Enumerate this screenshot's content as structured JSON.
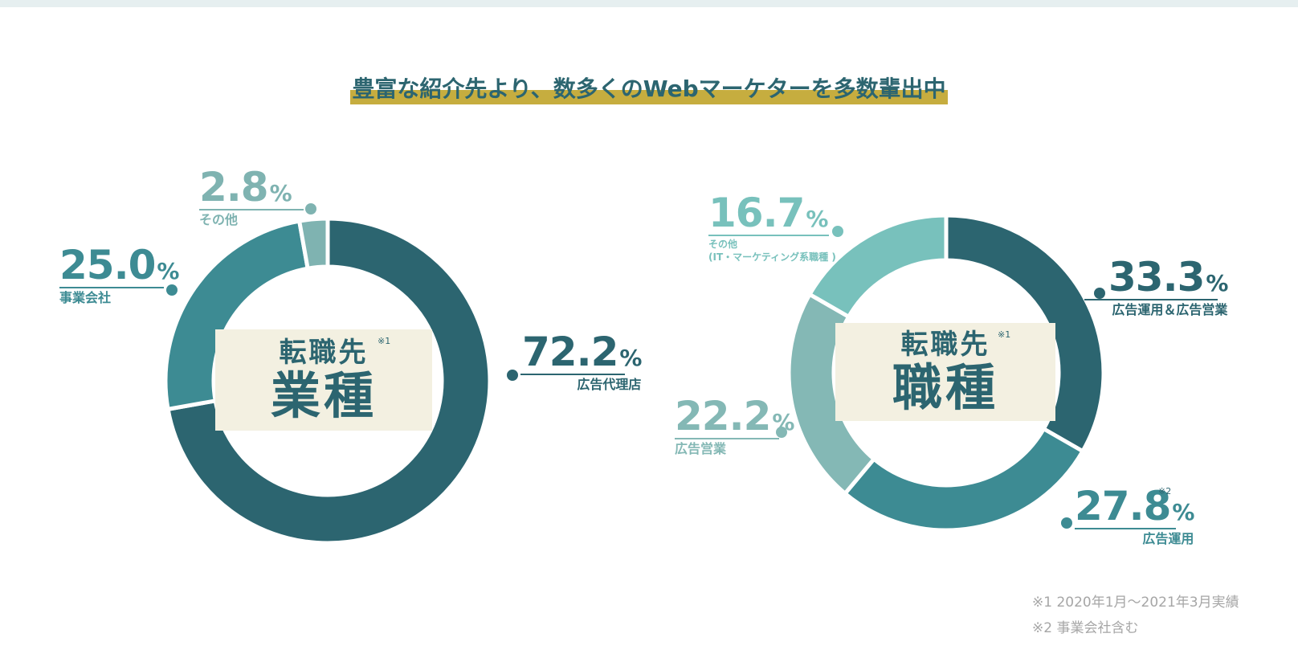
{
  "title": "豊富な紹介先より、数多くのWebマーケターを多数輩出中",
  "chart_data": [
    {
      "type": "pie",
      "center_label_top": "転職先",
      "center_label_main": "業種",
      "center_note": "※1",
      "unit": "%",
      "slices": [
        {
          "label": "広告代理店",
          "value": 72.2,
          "value_text": "72.2",
          "color": "#2c6570"
        },
        {
          "label": "事業会社",
          "value": 25.0,
          "value_text": "25.0",
          "color": "#3d8b93"
        },
        {
          "label": "その他",
          "value": 2.8,
          "value_text": "2.8",
          "color": "#7fb3b1"
        }
      ]
    },
    {
      "type": "pie",
      "center_label_top": "転職先",
      "center_label_main": "職種",
      "center_note": "※1",
      "unit": "%",
      "slices": [
        {
          "label": "広告運用＆広告営業",
          "value": 33.3,
          "value_text": "33.3",
          "color": "#2c6570"
        },
        {
          "label": "広告運用",
          "value": 27.8,
          "value_text": "27.8",
          "note": "※2",
          "color": "#3d8b93"
        },
        {
          "label": "広告営業",
          "value": 22.2,
          "value_text": "22.2",
          "color": "#84b8b5"
        },
        {
          "label": "その他",
          "label2": "(IT・マーケティング系職種 )",
          "value": 16.7,
          "value_text": "16.7",
          "color": "#78c1bc"
        }
      ]
    }
  ],
  "footnotes": [
    "※1 2020年1月～2021年3月実績",
    "※2 事業会社含む"
  ]
}
